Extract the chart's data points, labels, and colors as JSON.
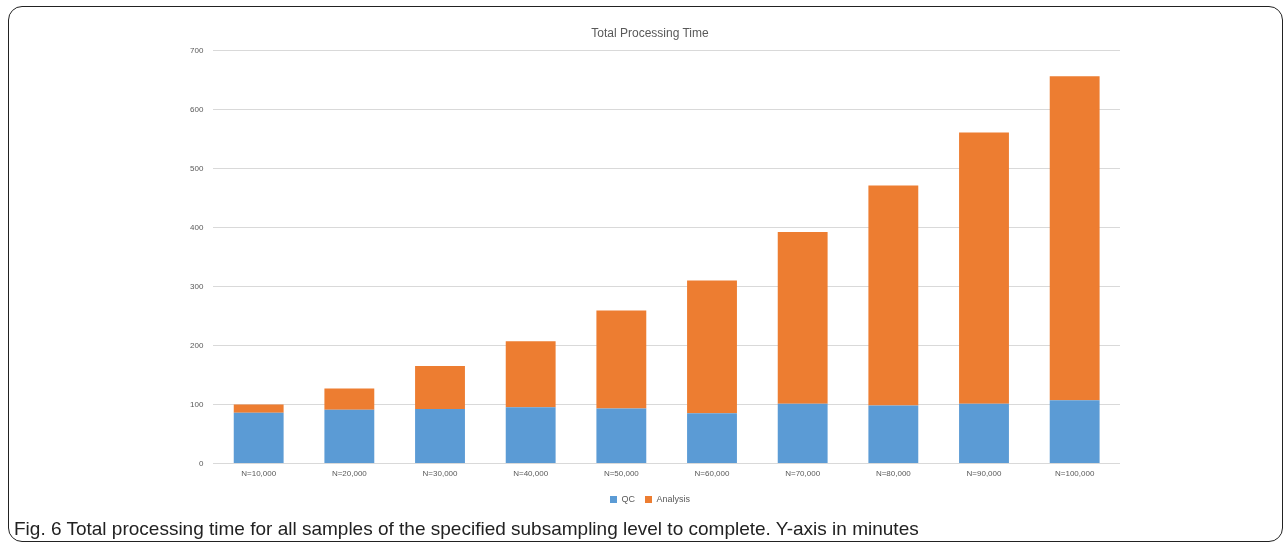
{
  "chart_data": {
    "type": "bar",
    "title": "Total Processing Time",
    "stacked": true,
    "grid": "y",
    "legend": "bottom",
    "categories": [
      "N=10,000",
      "N=20,000",
      "N=30,000",
      "N=40,000",
      "N=50,000",
      "N=60,000",
      "N=70,000",
      "N=80,000",
      "N=90,000",
      "N=100,000"
    ],
    "series": [
      {
        "name": "QC",
        "color": "#5b9bd5",
        "values": [
          86,
          91,
          92,
          95,
          93,
          85,
          101,
          98,
          101,
          107
        ]
      },
      {
        "name": "Analysis",
        "color": "#ed7d31",
        "values": [
          14,
          36,
          73,
          112,
          166,
          225,
          291,
          373,
          460,
          549
        ]
      }
    ],
    "ylim": [
      0,
      700
    ],
    "yticks": [
      0,
      100,
      200,
      300,
      400,
      500,
      600,
      700
    ],
    "annotations": [
      "Fig. 6 Total processing time for all samples of the specified subsampling level to complete. Y-axis in minutes"
    ]
  }
}
